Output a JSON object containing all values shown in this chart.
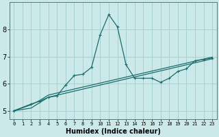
{
  "xlabel": "Humidex (Indice chaleur)",
  "bg_color": "#cce9e9",
  "grid_color": "#a8d0d0",
  "line_color": "#1a6b6b",
  "xlim": [
    -0.5,
    23.5
  ],
  "ylim": [
    4.7,
    9.0
  ],
  "yticks": [
    5,
    6,
    7,
    8
  ],
  "xticks": [
    0,
    1,
    2,
    3,
    4,
    5,
    6,
    7,
    8,
    9,
    10,
    11,
    12,
    13,
    14,
    15,
    16,
    17,
    18,
    19,
    20,
    21,
    22,
    23
  ],
  "line1_x": [
    0,
    2,
    3,
    4,
    5,
    6,
    7,
    8,
    9,
    10,
    11,
    12,
    13,
    14,
    15,
    16,
    17,
    18,
    19,
    20,
    21,
    22,
    23
  ],
  "line1_y": [
    5.0,
    5.25,
    5.35,
    5.5,
    5.55,
    5.95,
    6.3,
    6.35,
    6.6,
    7.8,
    8.55,
    8.1,
    6.7,
    6.2,
    6.2,
    6.2,
    6.05,
    6.2,
    6.45,
    6.55,
    6.85,
    6.9,
    6.95
  ],
  "line2_x": [
    0,
    2,
    3,
    4,
    23
  ],
  "line2_y": [
    5.0,
    5.1,
    5.3,
    5.5,
    6.92
  ],
  "line3_x": [
    0,
    2,
    3,
    4,
    23
  ],
  "line3_y": [
    5.0,
    5.22,
    5.38,
    5.58,
    6.98
  ]
}
